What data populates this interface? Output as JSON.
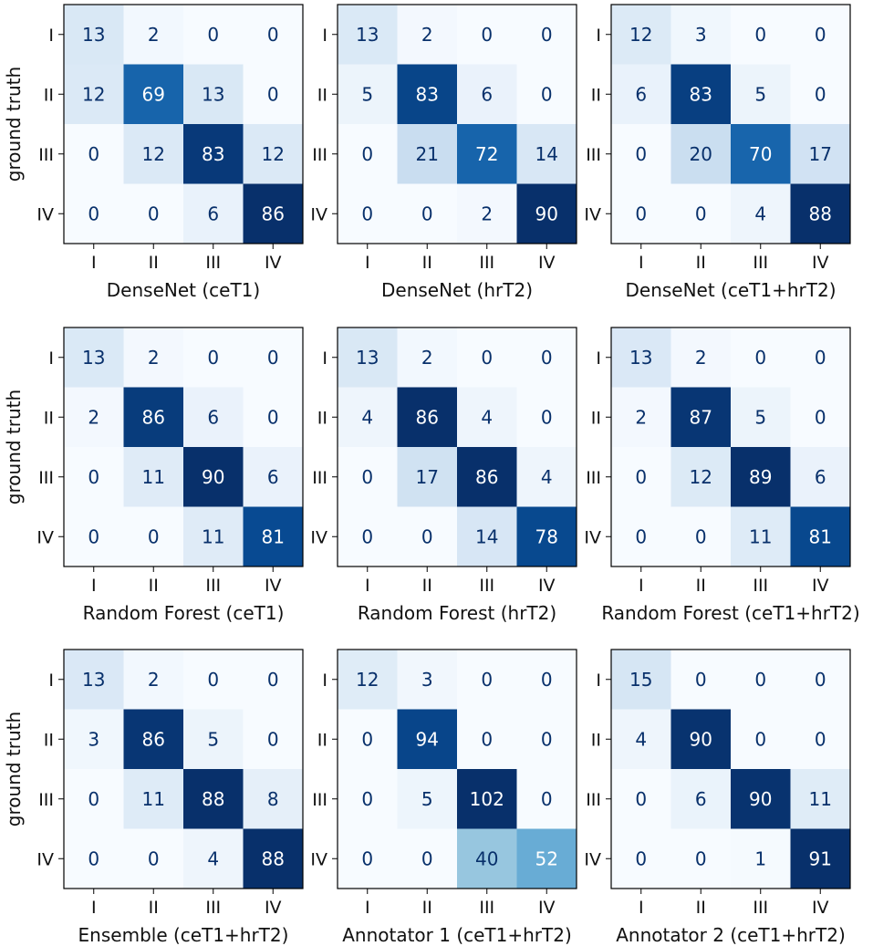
{
  "chart_data": {
    "type": "heatmap",
    "class_labels": [
      "I",
      "II",
      "III",
      "IV"
    ],
    "ylabel": "ground truth",
    "colormap": "Blues",
    "matrices": [
      {
        "title": "DenseNet (ceT1)",
        "matrix": [
          [
            13,
            2,
            0,
            0
          ],
          [
            12,
            69,
            13,
            0
          ],
          [
            0,
            12,
            83,
            12
          ],
          [
            0,
            0,
            6,
            86
          ]
        ]
      },
      {
        "title": "DenseNet (hrT2)",
        "matrix": [
          [
            13,
            2,
            0,
            0
          ],
          [
            5,
            83,
            6,
            0
          ],
          [
            0,
            21,
            72,
            14
          ],
          [
            0,
            0,
            2,
            90
          ]
        ]
      },
      {
        "title": "DenseNet (ceT1+hrT2)",
        "matrix": [
          [
            12,
            3,
            0,
            0
          ],
          [
            6,
            83,
            5,
            0
          ],
          [
            0,
            20,
            70,
            17
          ],
          [
            0,
            0,
            4,
            88
          ]
        ]
      },
      {
        "title": "Random Forest (ceT1)",
        "matrix": [
          [
            13,
            2,
            0,
            0
          ],
          [
            2,
            86,
            6,
            0
          ],
          [
            0,
            11,
            90,
            6
          ],
          [
            0,
            0,
            11,
            81
          ]
        ]
      },
      {
        "title": "Random Forest (hrT2)",
        "matrix": [
          [
            13,
            2,
            0,
            0
          ],
          [
            4,
            86,
            4,
            0
          ],
          [
            0,
            17,
            86,
            4
          ],
          [
            0,
            0,
            14,
            78
          ]
        ]
      },
      {
        "title": "Random Forest (ceT1+hrT2)",
        "matrix": [
          [
            13,
            2,
            0,
            0
          ],
          [
            2,
            87,
            5,
            0
          ],
          [
            0,
            12,
            89,
            6
          ],
          [
            0,
            0,
            11,
            81
          ]
        ]
      },
      {
        "title": "Ensemble (ceT1+hrT2)",
        "matrix": [
          [
            13,
            2,
            0,
            0
          ],
          [
            3,
            86,
            5,
            0
          ],
          [
            0,
            11,
            88,
            8
          ],
          [
            0,
            0,
            4,
            88
          ]
        ]
      },
      {
        "title": "Annotator 1 (ceT1+hrT2)",
        "matrix": [
          [
            12,
            3,
            0,
            0
          ],
          [
            0,
            94,
            0,
            0
          ],
          [
            0,
            5,
            102,
            0
          ],
          [
            0,
            0,
            40,
            52
          ]
        ]
      },
      {
        "title": "Annotator 2 (ceT1+hrT2)",
        "matrix": [
          [
            15,
            0,
            0,
            0
          ],
          [
            4,
            90,
            0,
            0
          ],
          [
            0,
            6,
            90,
            11
          ],
          [
            0,
            0,
            1,
            91
          ]
        ]
      }
    ]
  }
}
